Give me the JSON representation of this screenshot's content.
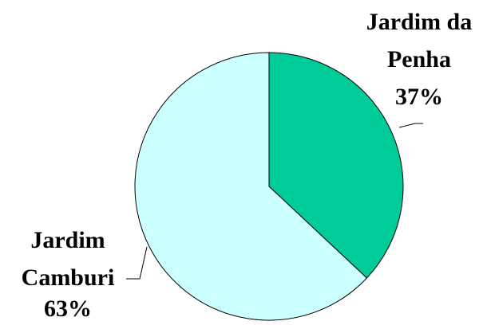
{
  "chart_data": {
    "type": "pie",
    "categories": [
      "Jardim da Penha",
      "Jardim Camburi"
    ],
    "values": [
      37,
      63
    ],
    "value_labels": [
      "37%",
      "63%"
    ],
    "colors": [
      "#00cc99",
      "#ccffff"
    ]
  }
}
